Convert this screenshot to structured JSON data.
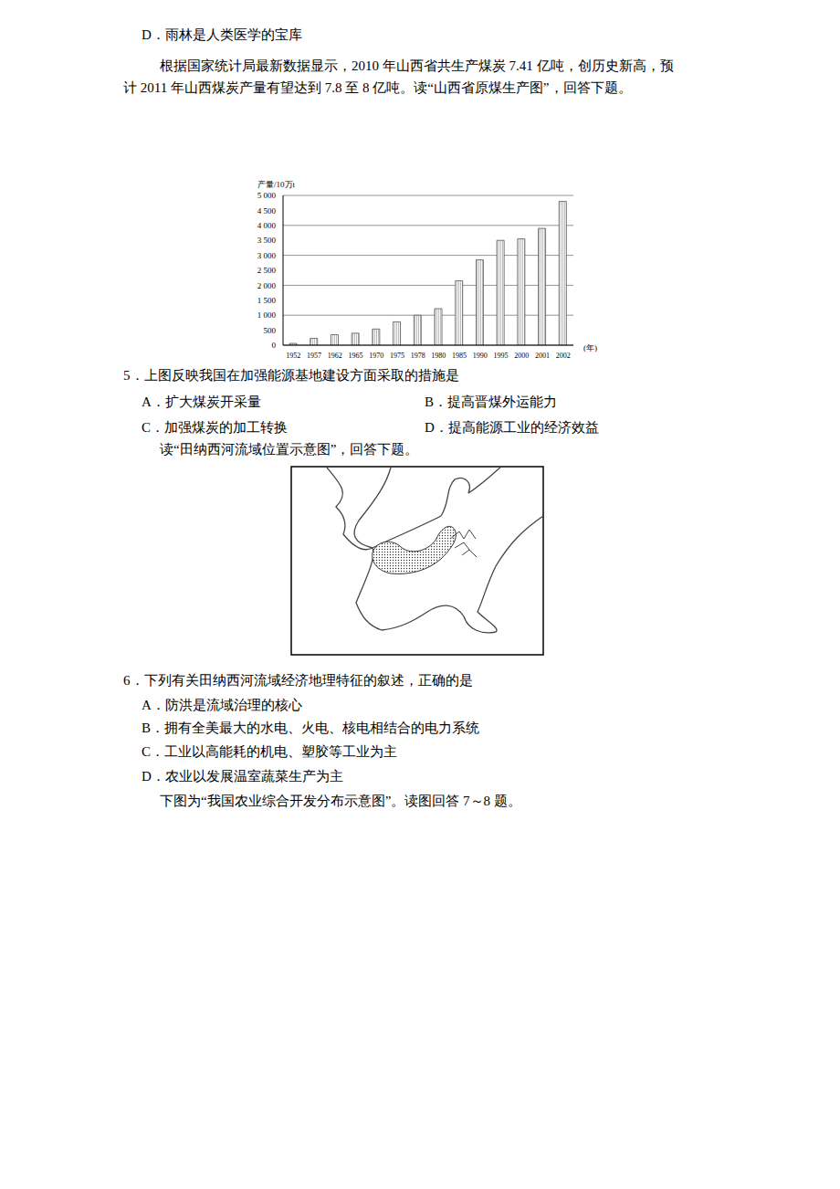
{
  "header_lines": [
    "D．雨林是人类医学的宝库"
  ],
  "intro_lines": [
    "根据国家统计局最新数据显示，2010 年山西省共生产煤炭 7.41 亿吨，创历史新高，预",
    "计 2011 年山西煤炭产量有望达到 7.8 至 8 亿吨。读“山西省原煤生产图”，回答下题。"
  ],
  "chart_data": {
    "type": "bar",
    "y_label": "产量/10万t",
    "x_label": "(年)",
    "categories": [
      "1952",
      "1957",
      "1962",
      "1965",
      "1970",
      "1975",
      "1978",
      "1980",
      "1985",
      "1990",
      "1995",
      "2000",
      "2001",
      "2002"
    ],
    "values": [
      60,
      230,
      350,
      400,
      540,
      780,
      1000,
      1220,
      2150,
      2850,
      3500,
      3550,
      3900,
      4800
    ],
    "color": "#555555",
    "ylim": [
      0,
      5000
    ],
    "yticks": [
      0,
      500,
      {
        "value": 1000,
        "label": "1 000"
      },
      {
        "value": 1500,
        "label": "1 500"
      },
      {
        "value": 2000,
        "label": "2 000"
      },
      {
        "value": 2500,
        "label": "2 500"
      },
      {
        "value": 3000,
        "label": "3 000"
      },
      {
        "value": 3500,
        "label": "3 500"
      },
      {
        "value": 4000,
        "label": "4 000"
      },
      {
        "value": 4500,
        "label": "4 500"
      },
      {
        "value": 5000,
        "label": "5 000"
      }
    ],
    "grid": true
  },
  "question5": {
    "stem": "5．上图反映我国在加强能源基地建设方面采取的措施是",
    "options": [
      "A．扩大煤炭开采量",
      "B．提高晋煤外运能力",
      "C．加强煤炭的加工转换",
      "D．提高能源工业的经济效益"
    ]
  },
  "map_intro": "读“田纳西河流域位置示意图”，回答下题。",
  "question6": {
    "stem": "6．下列有关田纳西河流域经济地理特征的叙述，正确的是",
    "options": [
      "A．防洪是流域治理的核心",
      "B．拥有全美最大的水电、火电、核电相结合的电力系统",
      "C．工业以高能耗的机电、塑胶等工业为主",
      "D．农业以发展温室蔬菜生产为主"
    ]
  },
  "footer": "下图为“我国农业综合开发分布示意图”。读图回答 7～8 题。"
}
